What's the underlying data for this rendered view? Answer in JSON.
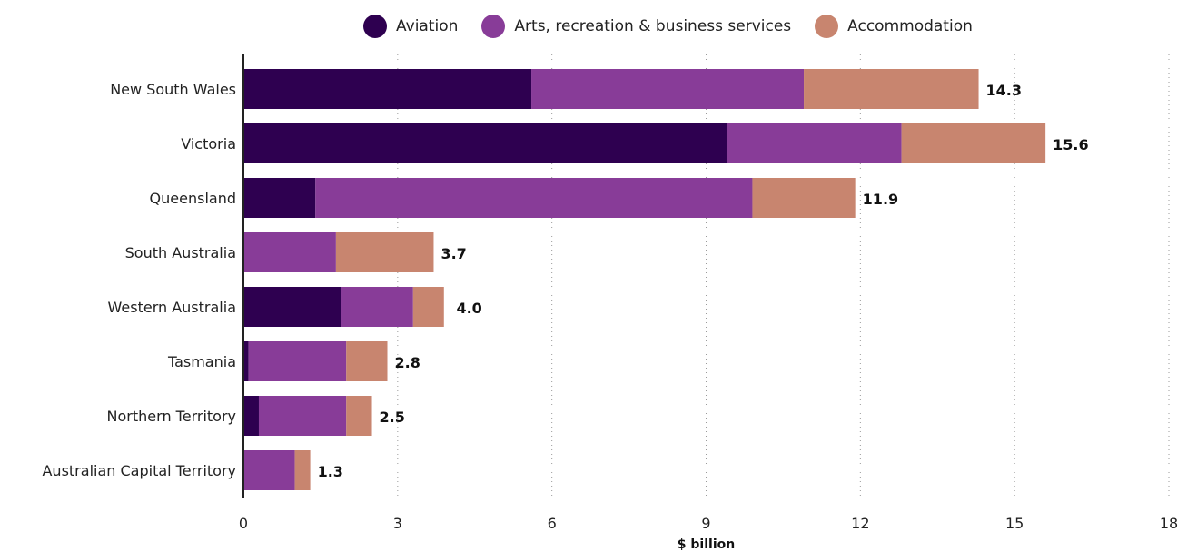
{
  "chart_data": {
    "type": "bar",
    "orientation": "horizontal",
    "stacked": true,
    "categories": [
      "New South Wales",
      "Victoria",
      "Queensland",
      "South Australia",
      "Western Australia",
      "Tasmania",
      "Northern Territory",
      "Australian Capital Territory"
    ],
    "series": [
      {
        "name": "Aviation",
        "color": "#2e0050",
        "values": [
          5.6,
          9.4,
          1.4,
          0.0,
          1.9,
          0.1,
          0.3,
          0.0
        ]
      },
      {
        "name": "Arts, recreation & business services",
        "color": "#883c98",
        "values": [
          5.3,
          3.4,
          8.5,
          1.8,
          1.4,
          1.9,
          1.7,
          1.0
        ]
      },
      {
        "name": "Accommodation",
        "color": "#c8856f",
        "values": [
          3.4,
          2.8,
          2.0,
          1.9,
          0.6,
          0.8,
          0.5,
          0.3
        ]
      }
    ],
    "totals": [
      "14.3",
      "15.6",
      "11.9",
      "3.7",
      "4.0",
      "2.8",
      "2.5",
      "1.3"
    ],
    "xlabel": "$ billion",
    "xlim": [
      0,
      18
    ],
    "xticks": [
      "0",
      "3",
      "6",
      "9",
      "12",
      "15",
      "18"
    ],
    "grid": "vertical dotted",
    "legend_position": "top"
  }
}
